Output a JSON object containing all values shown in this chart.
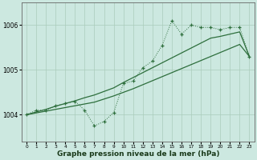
{
  "x_hours": [
    0,
    1,
    2,
    3,
    4,
    5,
    6,
    7,
    8,
    9,
    10,
    11,
    12,
    13,
    14,
    15,
    16,
    17,
    18,
    19,
    20,
    21,
    22,
    23
  ],
  "pressure_main": [
    1004.0,
    1004.1,
    1004.1,
    1004.2,
    1004.25,
    1004.3,
    1004.1,
    1003.75,
    1003.85,
    1004.05,
    1004.7,
    1004.75,
    1005.05,
    1005.2,
    1005.55,
    1006.1,
    1005.8,
    1006.0,
    1005.95,
    1005.95,
    1005.9,
    1005.95,
    1005.95,
    1005.3
  ],
  "pressure_line1": [
    1004.0,
    1004.04,
    1004.08,
    1004.12,
    1004.16,
    1004.2,
    1004.24,
    1004.28,
    1004.35,
    1004.42,
    1004.5,
    1004.58,
    1004.67,
    1004.76,
    1004.85,
    1004.94,
    1005.03,
    1005.12,
    1005.21,
    1005.3,
    1005.39,
    1005.48,
    1005.57,
    1005.3
  ],
  "pressure_line2": [
    1004.0,
    1004.06,
    1004.12,
    1004.19,
    1004.25,
    1004.31,
    1004.38,
    1004.44,
    1004.52,
    1004.6,
    1004.72,
    1004.83,
    1004.94,
    1005.05,
    1005.16,
    1005.27,
    1005.38,
    1005.49,
    1005.6,
    1005.71,
    1005.75,
    1005.8,
    1005.85,
    1005.3
  ],
  "bg_color": "#cce8e0",
  "grid_color": "#aaccbb",
  "line_color": "#2d6e3c",
  "ytick_labels": [
    "1004",
    "1005",
    "1006"
  ],
  "ytick_vals": [
    1004,
    1005,
    1006
  ],
  "ylim": [
    1003.4,
    1006.5
  ],
  "xlim": [
    -0.5,
    23.5
  ],
  "xlabel": "Graphe pression niveau de la mer (hPa)"
}
